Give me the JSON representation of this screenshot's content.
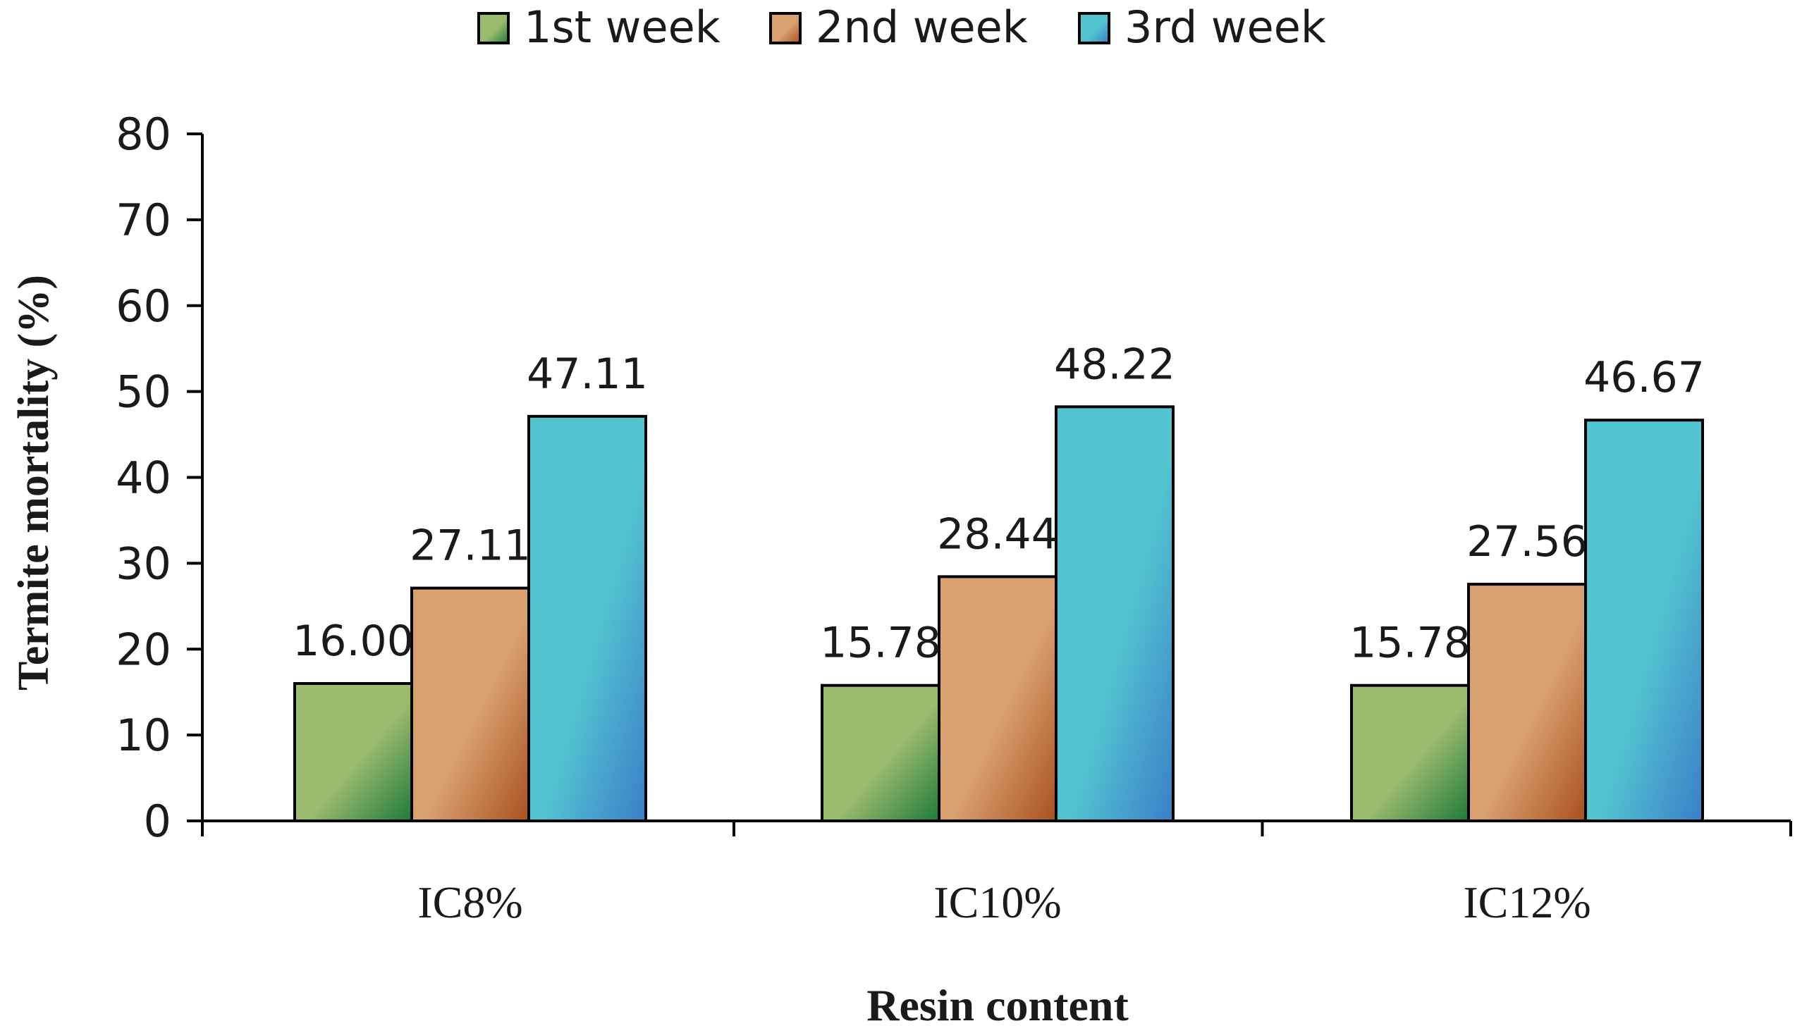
{
  "chart_data": {
    "type": "bar",
    "title": "",
    "xlabel": "Resin content",
    "ylabel": "Termite mortality (%)",
    "ylim": [
      0,
      80
    ],
    "yticks": [
      0,
      10,
      20,
      30,
      40,
      50,
      60,
      70,
      80
    ],
    "ytick_labels": [
      "0",
      "10",
      "20",
      "30",
      "40",
      "50",
      "60",
      "70",
      "80"
    ],
    "categories": [
      "IC8%",
      "IC10%",
      "IC12%"
    ],
    "legend_position": "top-center",
    "grid": false,
    "series": [
      {
        "name": "1st week",
        "values": [
          16.0,
          15.78,
          15.78
        ],
        "labels": [
          "16.00",
          "15.78",
          "15.78"
        ],
        "colors": [
          "#9BBB6E",
          "#1E7A3A"
        ]
      },
      {
        "name": "2nd week",
        "values": [
          27.11,
          28.44,
          27.56
        ],
        "labels": [
          "27.11",
          "28.44",
          "27.56"
        ],
        "colors": [
          "#D9A070",
          "#A8511E"
        ]
      },
      {
        "name": "3rd week",
        "values": [
          47.11,
          48.22,
          46.67
        ],
        "labels": [
          "47.11",
          "48.22",
          "46.67"
        ],
        "colors": [
          "#52C4D0",
          "#3A7EC8"
        ]
      }
    ]
  }
}
